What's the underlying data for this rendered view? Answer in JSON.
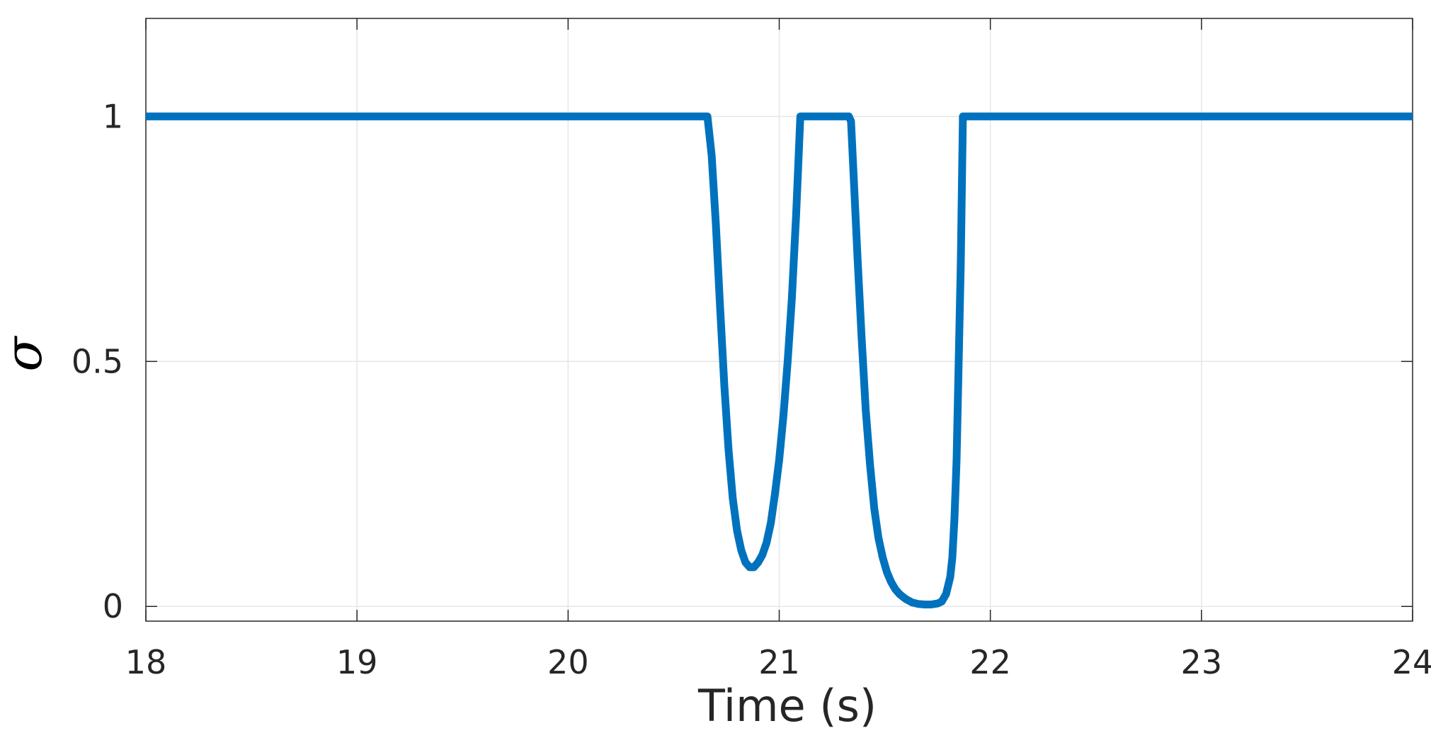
{
  "chart_data": {
    "type": "line",
    "title": "",
    "xlabel": "Time (s)",
    "ylabel": "σ",
    "xlim": [
      18,
      24
    ],
    "ylim": [
      -0.03,
      1.2
    ],
    "grid": true,
    "x_ticks": [
      18,
      19,
      20,
      21,
      22,
      23,
      24
    ],
    "x_tick_labels": [
      "18",
      "19",
      "20",
      "21",
      "22",
      "23",
      "24"
    ],
    "y_ticks": [
      0,
      0.5,
      1
    ],
    "y_tick_labels": [
      "0",
      "0.5",
      "1"
    ],
    "series": [
      {
        "color": "#0072BD",
        "x": [
          18,
          20.66,
          20.68,
          20.7,
          20.72,
          20.74,
          20.76,
          20.78,
          20.8,
          20.82,
          20.84,
          20.86,
          20.88,
          20.9,
          20.92,
          20.94,
          20.96,
          20.98,
          21.0,
          21.02,
          21.04,
          21.06,
          21.08,
          21.1,
          21.33,
          21.34,
          21.35,
          21.37,
          21.39,
          21.41,
          21.43,
          21.45,
          21.47,
          21.49,
          21.51,
          21.53,
          21.55,
          21.57,
          21.6,
          21.63,
          21.66,
          21.69,
          21.72,
          21.75,
          21.77,
          21.79,
          21.81,
          21.82,
          21.83,
          21.84,
          21.86,
          21.87,
          24
        ],
        "y": [
          1,
          1,
          0.92,
          0.78,
          0.61,
          0.45,
          0.32,
          0.22,
          0.155,
          0.115,
          0.09,
          0.08,
          0.08,
          0.09,
          0.105,
          0.13,
          0.17,
          0.23,
          0.3,
          0.39,
          0.5,
          0.63,
          0.8,
          1,
          1,
          0.99,
          0.9,
          0.72,
          0.55,
          0.4,
          0.29,
          0.2,
          0.14,
          0.1,
          0.07,
          0.05,
          0.035,
          0.025,
          0.015,
          0.008,
          0.005,
          0.004,
          0.004,
          0.006,
          0.01,
          0.025,
          0.06,
          0.1,
          0.18,
          0.3,
          0.7,
          1,
          1
        ]
      }
    ]
  }
}
